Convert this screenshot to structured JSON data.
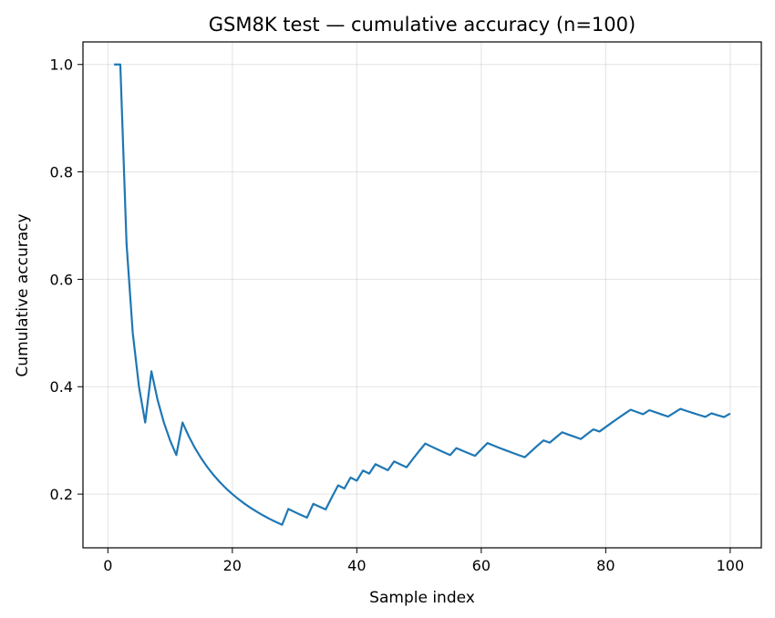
{
  "chart_data": {
    "type": "line",
    "title": "GSM8K test — cumulative accuracy (n=100)",
    "xlabel": "Sample index",
    "ylabel": "Cumulative accuracy",
    "xlim": [
      -4,
      105
    ],
    "ylim": [
      0.1,
      1.042
    ],
    "xticks": [
      0,
      20,
      40,
      60,
      80,
      100
    ],
    "yticks": [
      0.2,
      0.4,
      0.6,
      0.8,
      1.0
    ],
    "xtick_labels": [
      "0",
      "20",
      "40",
      "60",
      "80",
      "100"
    ],
    "ytick_labels": [
      "0.2",
      "0.4",
      "0.6",
      "0.8",
      "1.0"
    ],
    "grid": true,
    "color": "#1f77b4",
    "series": [
      {
        "x": [
          1,
          2,
          3,
          4,
          5,
          6,
          7,
          8,
          9,
          10,
          11,
          12,
          13,
          14,
          15,
          16,
          17,
          18,
          19,
          20,
          21,
          22,
          23,
          24,
          25,
          26,
          27,
          28,
          29,
          30,
          31,
          32,
          33,
          34,
          35,
          36,
          37,
          38,
          39,
          40,
          41,
          42,
          43,
          44,
          45,
          46,
          47,
          48,
          49,
          50,
          51,
          52,
          53,
          54,
          55,
          56,
          57,
          58,
          59,
          60,
          61,
          62,
          63,
          64,
          65,
          66,
          67,
          68,
          69,
          70,
          71,
          72,
          73,
          74,
          75,
          76,
          77,
          78,
          79,
          80,
          81,
          82,
          83,
          84,
          85,
          86,
          87,
          88,
          89,
          90,
          91,
          92,
          93,
          94,
          95,
          96,
          97,
          98,
          99,
          100
        ],
        "y": [
          1.0,
          1.0,
          0.6667,
          0.5,
          0.4,
          0.3333,
          0.4286,
          0.375,
          0.3333,
          0.3,
          0.2727,
          0.3333,
          0.3077,
          0.2857,
          0.2667,
          0.25,
          0.2353,
          0.2222,
          0.2105,
          0.2,
          0.1905,
          0.1818,
          0.1739,
          0.1667,
          0.16,
          0.1538,
          0.1481,
          0.1429,
          0.1724,
          0.1667,
          0.1613,
          0.1563,
          0.1818,
          0.1765,
          0.1714,
          0.1944,
          0.2162,
          0.2105,
          0.2308,
          0.225,
          0.2439,
          0.2381,
          0.2558,
          0.25,
          0.2444,
          0.2609,
          0.2553,
          0.25,
          0.2653,
          0.28,
          0.2941,
          0.2885,
          0.283,
          0.2778,
          0.2727,
          0.2857,
          0.2807,
          0.2759,
          0.2712,
          0.2833,
          0.2951,
          0.2903,
          0.2857,
          0.2813,
          0.2769,
          0.2727,
          0.2687,
          0.2794,
          0.2899,
          0.3,
          0.2958,
          0.3056,
          0.3151,
          0.3108,
          0.3067,
          0.3026,
          0.3117,
          0.3205,
          0.3165,
          0.325,
          0.3333,
          0.3415,
          0.3494,
          0.3571,
          0.3529,
          0.3488,
          0.3563,
          0.3523,
          0.3483,
          0.3444,
          0.3516,
          0.3587,
          0.3548,
          0.3511,
          0.3474,
          0.3438,
          0.3505,
          0.3469,
          0.3434,
          0.35
        ]
      }
    ]
  }
}
